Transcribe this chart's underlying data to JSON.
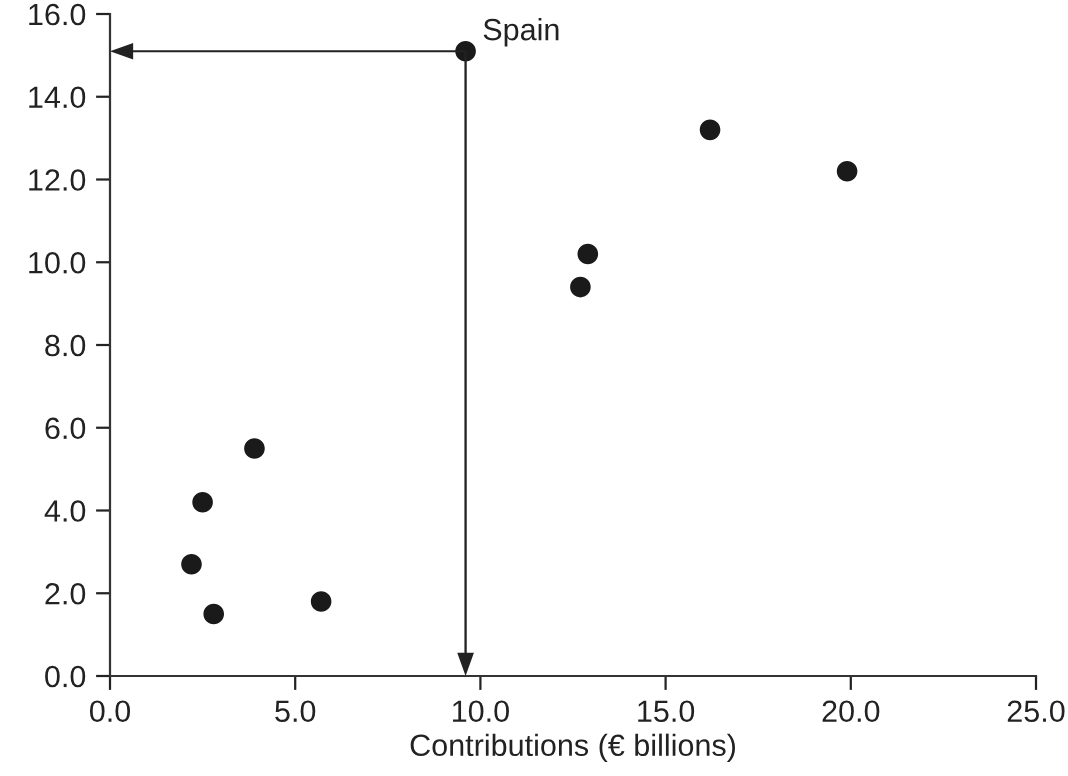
{
  "chart_data": {
    "type": "scatter",
    "xlabel": "Contributions (€ billions)",
    "x": [
      9.6,
      3.9,
      2.5,
      2.2,
      2.8,
      5.7,
      12.7,
      12.9,
      16.2,
      19.9
    ],
    "values": [
      15.1,
      5.5,
      4.2,
      2.7,
      1.5,
      1.8,
      9.4,
      10.2,
      13.2,
      12.2
    ],
    "color": "#1a1a1a",
    "marker": "circle",
    "xlim": [
      0,
      25
    ],
    "ylim": [
      0,
      16
    ],
    "xticks": [
      {
        "value": 0,
        "label": "0.0"
      },
      {
        "value": 5,
        "label": "5.0"
      },
      {
        "value": 10,
        "label": "10.0"
      },
      {
        "value": 15,
        "label": "15.0"
      },
      {
        "value": 20,
        "label": "20.0"
      },
      {
        "value": 25,
        "label": "25.0"
      }
    ],
    "yticks": [
      {
        "value": 0,
        "label": "0.0"
      },
      {
        "value": 2,
        "label": "2.0"
      },
      {
        "value": 4,
        "label": "4.0"
      },
      {
        "value": 6,
        "label": "6.0"
      },
      {
        "value": 8,
        "label": "8.0"
      },
      {
        "value": 10,
        "label": "10.0"
      },
      {
        "value": 12,
        "label": "12.0"
      },
      {
        "value": 14,
        "label": "14.0"
      },
      {
        "value": 16,
        "label": "16.0"
      }
    ],
    "annotations": [
      {
        "text": "Spain",
        "x": 9.6,
        "y": 15.1
      }
    ],
    "grid": false,
    "legend": false
  }
}
